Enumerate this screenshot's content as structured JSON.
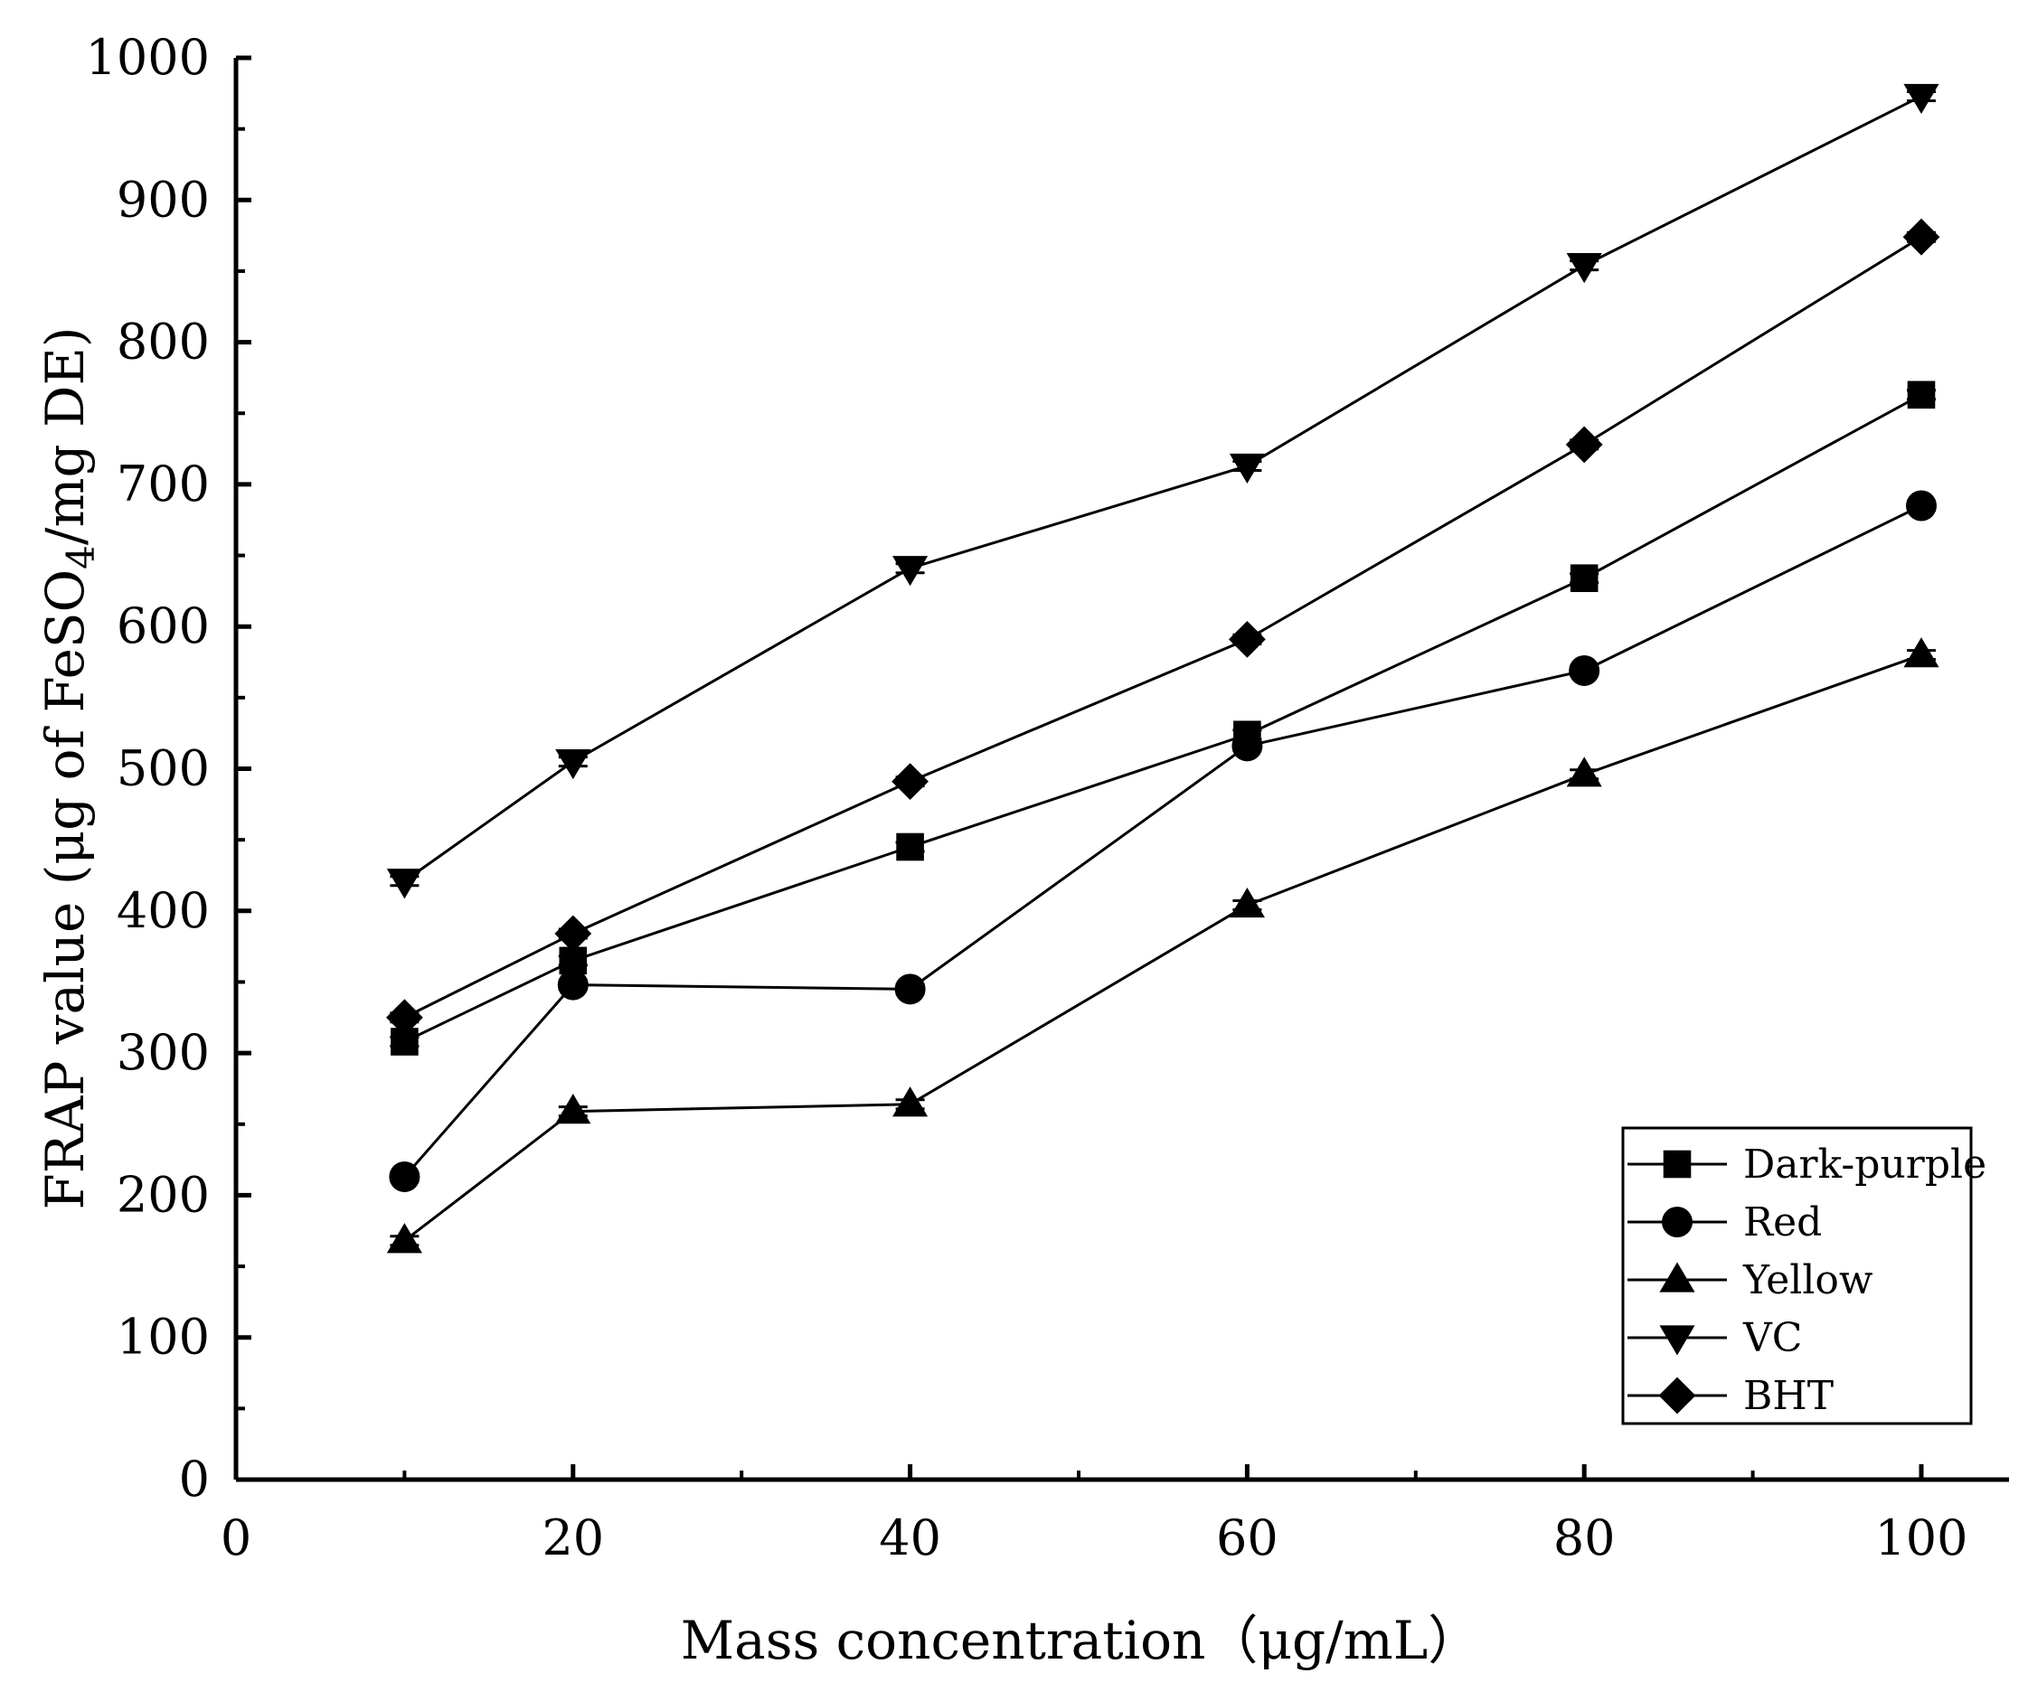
{
  "chart_data": {
    "type": "line",
    "title": "",
    "xlabel": "Mass concentration（μg/mL）",
    "ylabel_parts": {
      "pre": "FRAP value (μg of FeSO",
      "sub": "4",
      "post": "/mg DE)"
    },
    "xlim": [
      0,
      105
    ],
    "ylim": [
      0,
      1000
    ],
    "xticks": [
      0,
      20,
      40,
      60,
      80,
      100
    ],
    "yticks": [
      0,
      100,
      200,
      300,
      400,
      500,
      600,
      700,
      800,
      900,
      1000
    ],
    "legend_position": "bottom-right",
    "x": [
      10,
      20,
      40,
      60,
      80,
      100
    ],
    "series": [
      {
        "name": "Dark-purple",
        "marker": "square",
        "values": [
          308,
          365,
          445,
          524,
          634,
          763
        ]
      },
      {
        "name": "Red",
        "marker": "circle",
        "values": [
          213,
          348,
          345,
          516,
          569,
          685
        ]
      },
      {
        "name": "Yellow",
        "marker": "triangle-up",
        "values": [
          168,
          259,
          264,
          404,
          496,
          580
        ]
      },
      {
        "name": "VC",
        "marker": "triangle-down",
        "values": [
          421,
          505,
          641,
          713,
          854,
          973
        ]
      },
      {
        "name": "BHT",
        "marker": "diamond",
        "values": [
          325,
          384,
          491,
          591,
          728,
          874
        ]
      }
    ]
  }
}
